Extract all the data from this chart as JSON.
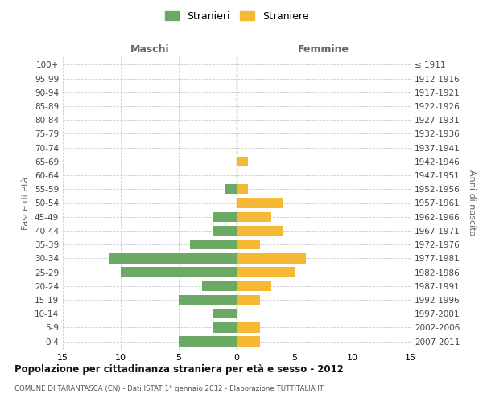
{
  "age_groups": [
    "0-4",
    "5-9",
    "10-14",
    "15-19",
    "20-24",
    "25-29",
    "30-34",
    "35-39",
    "40-44",
    "45-49",
    "50-54",
    "55-59",
    "60-64",
    "65-69",
    "70-74",
    "75-79",
    "80-84",
    "85-89",
    "90-94",
    "95-99",
    "100+"
  ],
  "birth_years": [
    "2007-2011",
    "2002-2006",
    "1997-2001",
    "1992-1996",
    "1987-1991",
    "1982-1986",
    "1977-1981",
    "1972-1976",
    "1967-1971",
    "1962-1966",
    "1957-1961",
    "1952-1956",
    "1947-1951",
    "1942-1946",
    "1937-1941",
    "1932-1936",
    "1927-1931",
    "1922-1926",
    "1917-1921",
    "1912-1916",
    "≤ 1911"
  ],
  "maschi": [
    5,
    2,
    2,
    5,
    3,
    10,
    11,
    4,
    2,
    2,
    0,
    1,
    0,
    0,
    0,
    0,
    0,
    0,
    0,
    0,
    0
  ],
  "femmine": [
    2,
    2,
    0,
    2,
    3,
    5,
    6,
    2,
    4,
    3,
    4,
    1,
    0,
    1,
    0,
    0,
    0,
    0,
    0,
    0,
    0
  ],
  "maschi_color": "#6aaa64",
  "femmine_color": "#f5b935",
  "bg_color": "#ffffff",
  "grid_color": "#cccccc",
  "title": "Popolazione per cittadinanza straniera per età e sesso - 2012",
  "subtitle": "COMUNE DI TARANTASCA (CN) - Dati ISTAT 1° gennaio 2012 - Elaborazione TUTTITALIA.IT",
  "xlabel_left": "Maschi",
  "xlabel_right": "Femmine",
  "ylabel_left": "Fasce di età",
  "ylabel_right": "Anni di nascita",
  "legend_maschi": "Stranieri",
  "legend_femmine": "Straniere",
  "xlim": 15,
  "figsize": [
    6.0,
    5.0
  ],
  "dpi": 100
}
